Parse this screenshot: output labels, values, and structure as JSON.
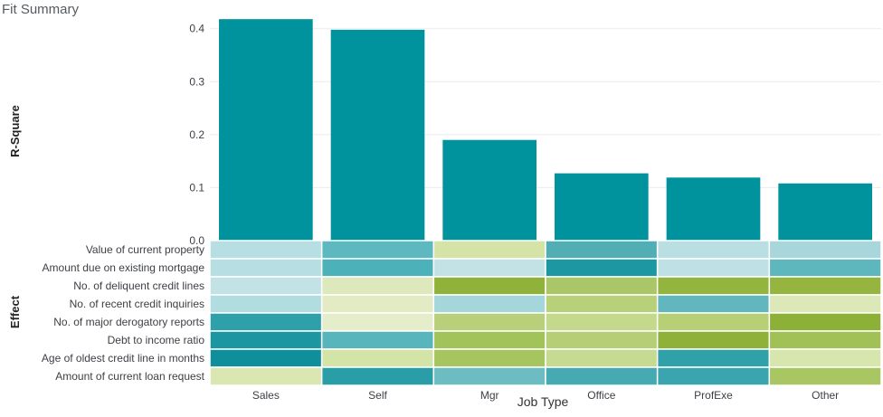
{
  "chart_data": [
    {
      "type": "bar",
      "title": "Fit Summary",
      "ylabel": "R-Square",
      "xlabel": "",
      "categories": [
        "Sales",
        "Self",
        "Mgr",
        "Office",
        "ProfExe",
        "Other"
      ],
      "values": [
        0.418,
        0.398,
        0.19,
        0.127,
        0.119,
        0.108
      ],
      "ylim": [
        0,
        0.42
      ],
      "yticks": [
        "0.0",
        "0.1",
        "0.2",
        "0.3",
        "0.4"
      ],
      "grid": true,
      "color": "#00929d"
    },
    {
      "type": "heatmap",
      "ylabel": "Effect",
      "xlabel": "Job Type",
      "columns": [
        "Sales",
        "Self",
        "Mgr",
        "Office",
        "ProfExe",
        "Other"
      ],
      "rows": [
        "Value of current property",
        "Amount due on existing mortgage",
        "No. of deliquent credit lines",
        "No. of recent credit inquiries",
        "No. of major derogatory reports",
        "Debt to income ratio",
        "Age of oldest credit line in months",
        "Amount of current loan request"
      ],
      "cells": [
        [
          "#b7dee2",
          "#5db8bf",
          "#d6e3a6",
          "#52aeb5",
          "#b9dfe3",
          "#a8d6db"
        ],
        [
          "#b7dee2",
          "#4db1b9",
          "#c2e2e6",
          "#1d98a3",
          "#bfe1e5",
          "#5eb7bd"
        ],
        [
          "#c2e2e5",
          "#dde8bc",
          "#91b23a",
          "#aac666",
          "#93b43e",
          "#95b53f"
        ],
        [
          "#b1dce0",
          "#e2ebc4",
          "#a5d6dc",
          "#b9d07a",
          "#62b6bd",
          "#dce8b8"
        ],
        [
          "#2da0a9",
          "#e6edca",
          "#b9cf79",
          "#c5d98d",
          "#b7cf75",
          "#8db136"
        ],
        [
          "#1c97a2",
          "#58b5bc",
          "#a2c25a",
          "#b6cf77",
          "#8fb13a",
          "#a1c156"
        ],
        [
          "#0f8f9b",
          "#d4e4a6",
          "#a6c55f",
          "#c7da92",
          "#30a0a9",
          "#d7e6ad"
        ],
        [
          "#dae7b3",
          "#2a9ea7",
          "#6cbcc2",
          "#46aab2",
          "#3aa5ae",
          "#a8c661"
        ]
      ]
    }
  ]
}
